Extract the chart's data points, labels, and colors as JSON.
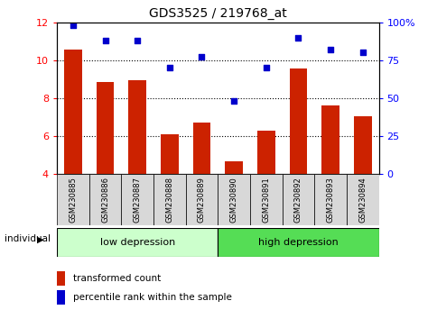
{
  "title": "GDS3525 / 219768_at",
  "samples": [
    "GSM230885",
    "GSM230886",
    "GSM230887",
    "GSM230888",
    "GSM230889",
    "GSM230890",
    "GSM230891",
    "GSM230892",
    "GSM230893",
    "GSM230894"
  ],
  "transformed_count": [
    10.55,
    8.85,
    8.95,
    6.1,
    6.7,
    4.65,
    6.3,
    9.55,
    7.6,
    7.05
  ],
  "percentile_rank": [
    98,
    88,
    88,
    70,
    77,
    48,
    70,
    90,
    82,
    80
  ],
  "ylim_left": [
    4,
    12
  ],
  "ylim_right": [
    0,
    100
  ],
  "yticks_left": [
    4,
    6,
    8,
    10,
    12
  ],
  "yticks_right": [
    0,
    25,
    50,
    75,
    100
  ],
  "yticklabels_right": [
    "0",
    "25",
    "50",
    "75",
    "100%"
  ],
  "bar_color": "#cc2200",
  "dot_color": "#0000cc",
  "group1_label": "low depression",
  "group2_label": "high depression",
  "group1_color": "#ccffcc",
  "group2_color": "#55dd55",
  "group1_samples": [
    0,
    1,
    2,
    3,
    4
  ],
  "group2_samples": [
    5,
    6,
    7,
    8,
    9
  ],
  "legend_bar_label": "transformed count",
  "legend_dot_label": "percentile rank within the sample",
  "individual_label": "individual",
  "dotgrid_lines": [
    10,
    8,
    6
  ],
  "grid_color": "#000000",
  "axis_bg_color": "#d8d8d8",
  "label_area_color": "#d8d8d8"
}
